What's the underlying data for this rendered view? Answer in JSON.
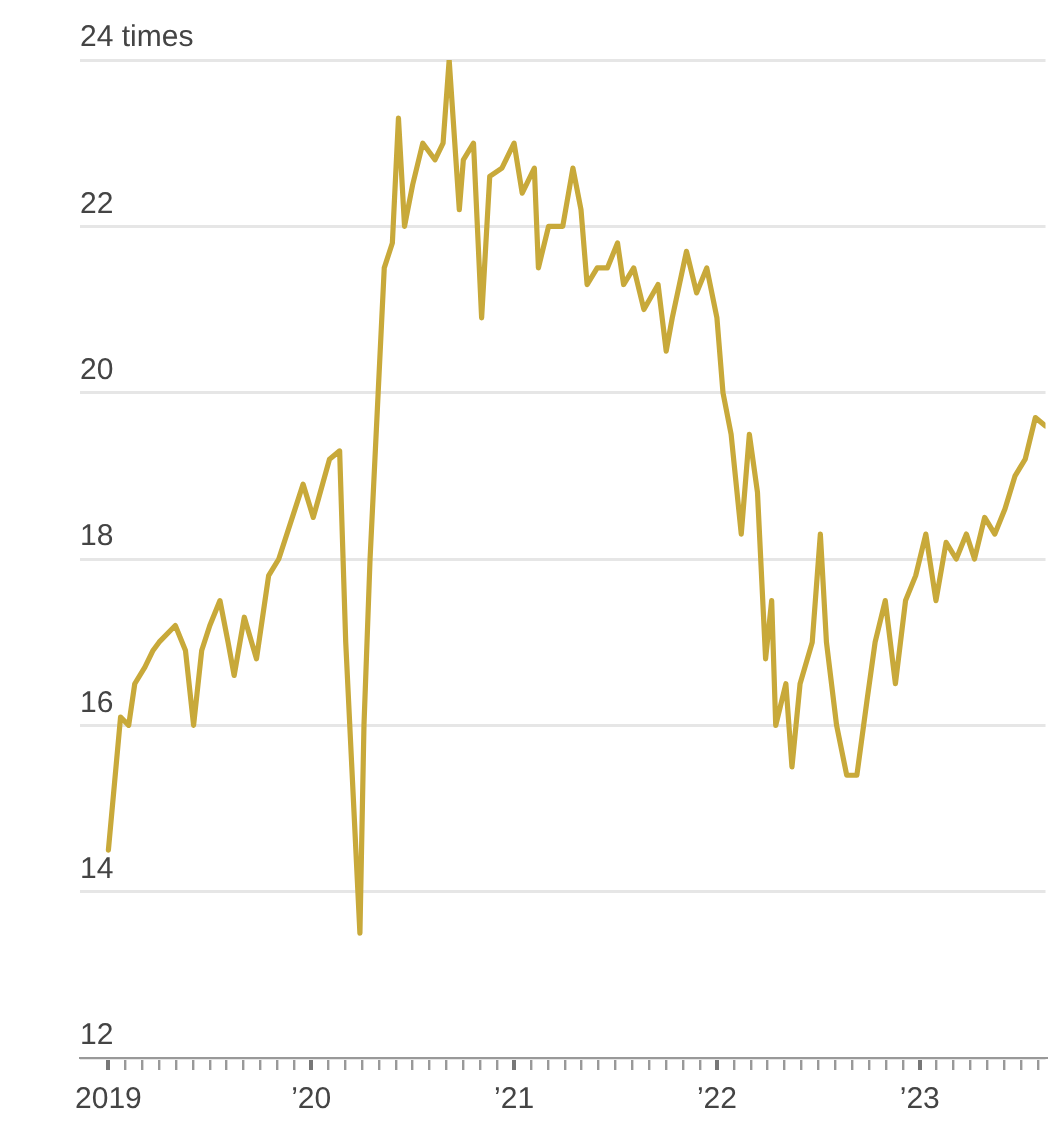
{
  "chart_data": {
    "type": "line",
    "color": "#c8a93a",
    "grid": "y",
    "x": [
      2019.0,
      2019.03,
      2019.06,
      2019.1,
      2019.13,
      2019.18,
      2019.22,
      2019.25,
      2019.33,
      2019.38,
      2019.42,
      2019.46,
      2019.5,
      2019.55,
      2019.59,
      2019.62,
      2019.67,
      2019.73,
      2019.79,
      2019.84,
      2019.92,
      2019.96,
      2020.01,
      2020.09,
      2020.14,
      2020.17,
      2020.2,
      2020.24,
      2020.26,
      2020.29,
      2020.33,
      2020.36,
      2020.4,
      2020.43,
      2020.46,
      2020.5,
      2020.55,
      2020.61,
      2020.65,
      2020.68,
      2020.73,
      2020.75,
      2020.8,
      2020.84,
      2020.88,
      2020.94,
      2021.0,
      2021.04,
      2021.1,
      2021.12,
      2021.17,
      2021.24,
      2021.29,
      2021.33,
      2021.36,
      2021.41,
      2021.46,
      2021.51,
      2021.54,
      2021.59,
      2021.64,
      2021.71,
      2021.75,
      2021.78,
      2021.85,
      2021.9,
      2021.95,
      2022.0,
      2022.03,
      2022.07,
      2022.12,
      2022.16,
      2022.2,
      2022.24,
      2022.27,
      2022.29,
      2022.34,
      2022.37,
      2022.41,
      2022.47,
      2022.51,
      2022.54,
      2022.59,
      2022.64,
      2022.69,
      2022.74,
      2022.78,
      2022.83,
      2022.88,
      2022.93,
      2022.98,
      2023.03,
      2023.08,
      2023.13,
      2023.18,
      2023.23,
      2023.27,
      2023.32,
      2023.37,
      2023.42,
      2023.47,
      2023.52,
      2023.57,
      2023.62
    ],
    "values": [
      14.5,
      15.3,
      16.1,
      16.0,
      16.5,
      16.7,
      16.9,
      17.0,
      17.2,
      16.9,
      16.0,
      16.9,
      17.2,
      17.5,
      17.0,
      16.6,
      17.3,
      16.8,
      17.8,
      18.0,
      18.6,
      18.9,
      18.5,
      19.2,
      19.3,
      17.0,
      15.5,
      13.5,
      16.0,
      18.0,
      20.0,
      21.5,
      21.8,
      23.3,
      22.0,
      22.5,
      23.0,
      22.8,
      23.0,
      24.0,
      22.2,
      22.8,
      23.0,
      20.9,
      22.6,
      22.7,
      23.0,
      22.4,
      22.7,
      21.5,
      22.0,
      22.0,
      22.7,
      22.2,
      21.3,
      21.5,
      21.5,
      21.8,
      21.3,
      21.5,
      21.0,
      21.3,
      20.5,
      20.9,
      21.7,
      21.2,
      21.5,
      20.9,
      20.0,
      19.5,
      18.3,
      19.5,
      18.8,
      16.8,
      17.5,
      16.0,
      16.5,
      15.5,
      16.5,
      17.0,
      18.3,
      17.0,
      16.0,
      15.4,
      15.4,
      16.3,
      17.0,
      17.5,
      16.5,
      17.5,
      17.8,
      18.3,
      17.5,
      18.2,
      18.0,
      18.3,
      18.0,
      18.5,
      18.3,
      18.6,
      19.0,
      19.2,
      19.7,
      19.6
    ],
    "xlim": [
      2018.86,
      2023.62
    ],
    "xticks": [
      {
        "value": 2019,
        "label": "2019"
      },
      {
        "value": 2019.083,
        "label": null
      },
      {
        "value": 2019.167,
        "label": null
      },
      {
        "value": 2019.25,
        "label": null
      },
      {
        "value": 2019.333,
        "label": null
      },
      {
        "value": 2019.417,
        "label": null
      },
      {
        "value": 2019.5,
        "label": null
      },
      {
        "value": 2019.583,
        "label": null
      },
      {
        "value": 2019.667,
        "label": null
      },
      {
        "value": 2019.75,
        "label": null
      },
      {
        "value": 2019.833,
        "label": null
      },
      {
        "value": 2019.917,
        "label": null
      },
      {
        "value": 2020,
        "label": "’20"
      },
      {
        "value": 2020.083,
        "label": null
      },
      {
        "value": 2020.167,
        "label": null
      },
      {
        "value": 2020.25,
        "label": null
      },
      {
        "value": 2020.333,
        "label": null
      },
      {
        "value": 2020.417,
        "label": null
      },
      {
        "value": 2020.5,
        "label": null
      },
      {
        "value": 2020.583,
        "label": null
      },
      {
        "value": 2020.667,
        "label": null
      },
      {
        "value": 2020.75,
        "label": null
      },
      {
        "value": 2020.833,
        "label": null
      },
      {
        "value": 2020.917,
        "label": null
      },
      {
        "value": 2021,
        "label": "’21"
      },
      {
        "value": 2021.083,
        "label": null
      },
      {
        "value": 2021.167,
        "label": null
      },
      {
        "value": 2021.25,
        "label": null
      },
      {
        "value": 2021.333,
        "label": null
      },
      {
        "value": 2021.417,
        "label": null
      },
      {
        "value": 2021.5,
        "label": null
      },
      {
        "value": 2021.583,
        "label": null
      },
      {
        "value": 2021.667,
        "label": null
      },
      {
        "value": 2021.75,
        "label": null
      },
      {
        "value": 2021.833,
        "label": null
      },
      {
        "value": 2021.917,
        "label": null
      },
      {
        "value": 2022,
        "label": "’22"
      },
      {
        "value": 2022.083,
        "label": null
      },
      {
        "value": 2022.167,
        "label": null
      },
      {
        "value": 2022.25,
        "label": null
      },
      {
        "value": 2022.333,
        "label": null
      },
      {
        "value": 2022.417,
        "label": null
      },
      {
        "value": 2022.5,
        "label": null
      },
      {
        "value": 2022.583,
        "label": null
      },
      {
        "value": 2022.667,
        "label": null
      },
      {
        "value": 2022.75,
        "label": null
      },
      {
        "value": 2022.833,
        "label": null
      },
      {
        "value": 2022.917,
        "label": null
      },
      {
        "value": 2023,
        "label": "’23"
      },
      {
        "value": 2023.083,
        "label": null
      },
      {
        "value": 2023.167,
        "label": null
      },
      {
        "value": 2023.25,
        "label": null
      },
      {
        "value": 2023.333,
        "label": null
      },
      {
        "value": 2023.417,
        "label": null
      },
      {
        "value": 2023.5,
        "label": null
      },
      {
        "value": 2023.583,
        "label": null
      }
    ],
    "ylim": [
      12,
      24
    ],
    "yticks": [
      12,
      14,
      16,
      18,
      20,
      22,
      {
        "value": 24,
        "label": "24 times"
      }
    ]
  }
}
